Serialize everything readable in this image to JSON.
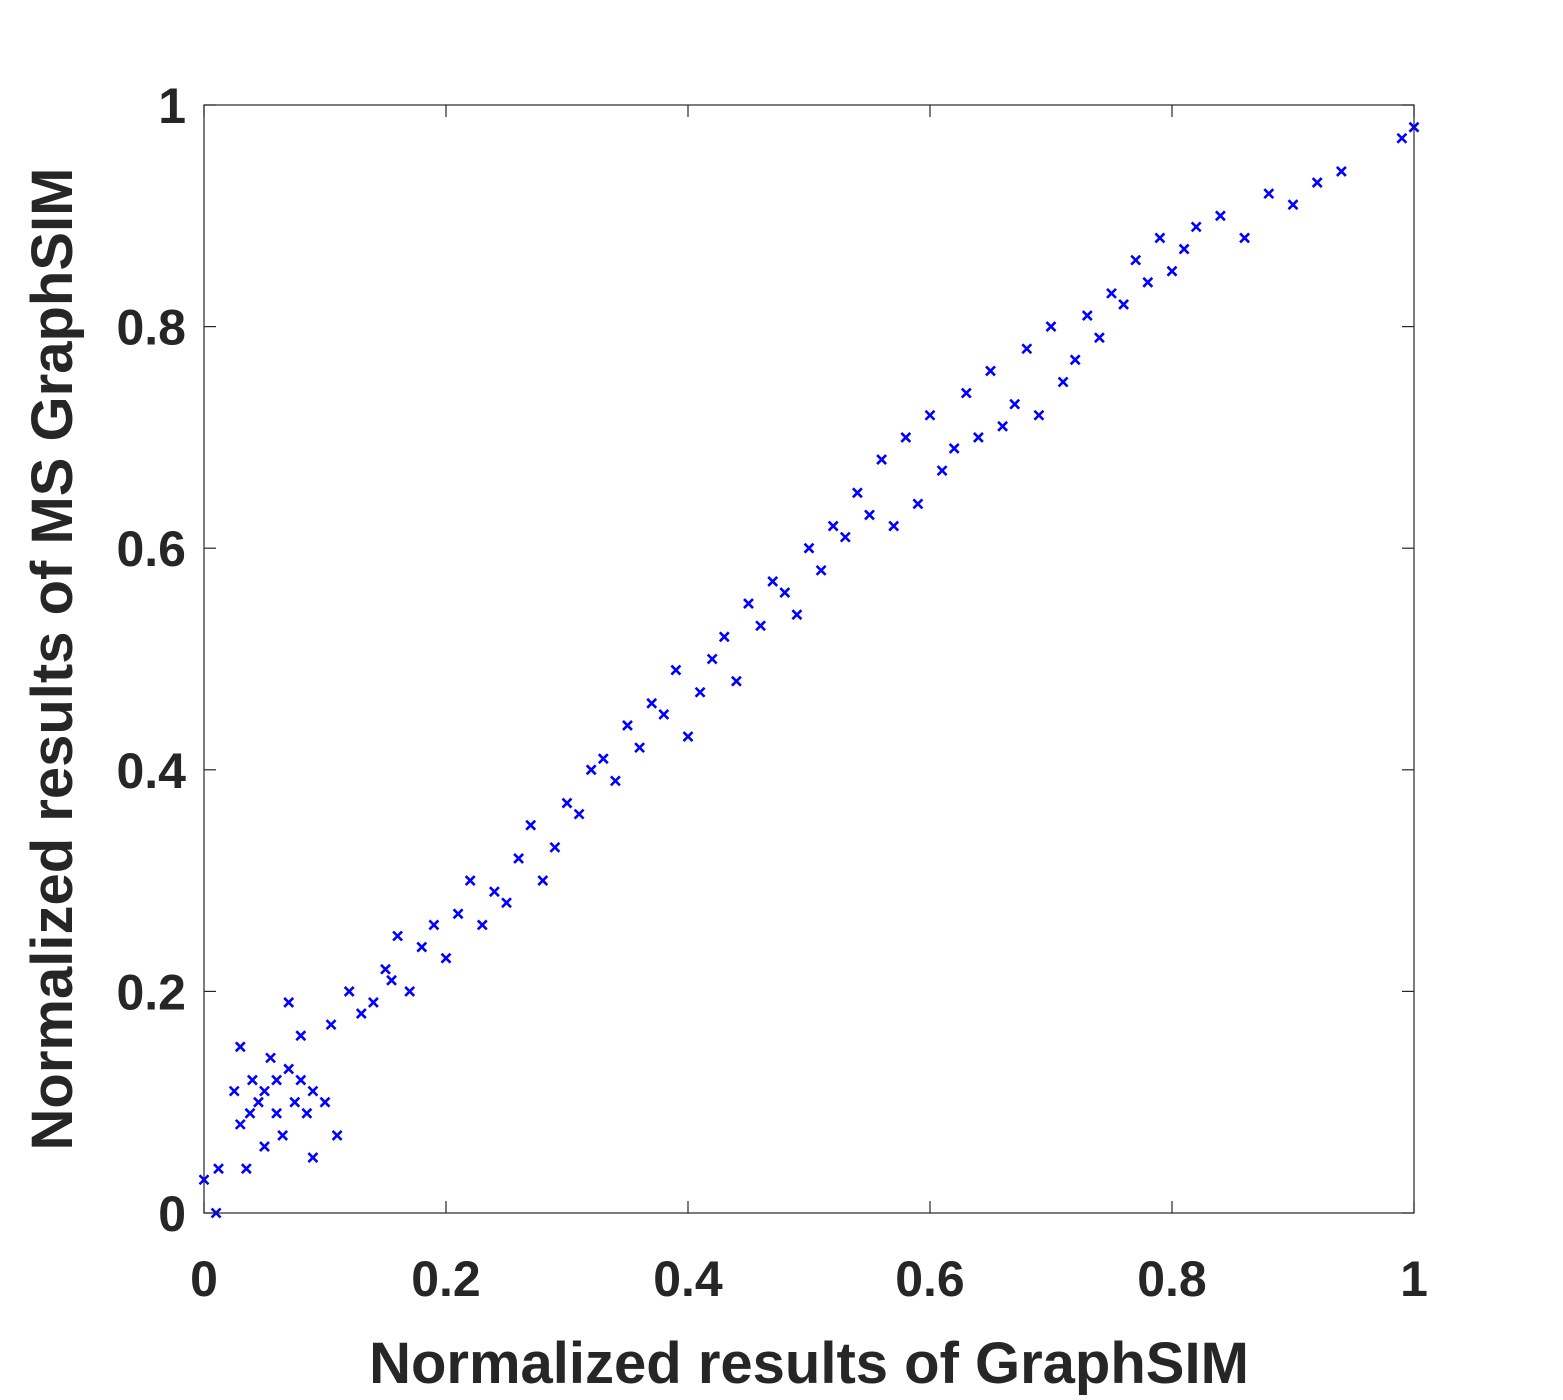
{
  "chart_data": {
    "type": "scatter",
    "title": "",
    "xlabel": "Normalized results of GraphSIM",
    "ylabel": "Normalized results of MS GraphSIM",
    "xlim": [
      0,
      1
    ],
    "ylim": [
      0,
      1
    ],
    "xticks": [
      "0",
      "0.2",
      "0.4",
      "0.6",
      "0.8",
      "1"
    ],
    "yticks": [
      "0",
      "0.2",
      "0.4",
      "0.6",
      "0.8",
      "1"
    ],
    "grid": false,
    "legend": "none",
    "marker": "x",
    "color": "#0000FF",
    "series": [
      {
        "x": [
          0.0,
          0.01,
          0.012,
          0.025,
          0.03,
          0.03,
          0.035,
          0.038,
          0.04,
          0.045,
          0.05,
          0.05,
          0.055,
          0.06,
          0.06,
          0.065,
          0.07,
          0.07,
          0.075,
          0.08,
          0.08,
          0.085,
          0.09,
          0.09,
          0.1,
          0.105,
          0.11,
          0.12,
          0.13,
          0.14,
          0.15,
          0.155,
          0.16,
          0.17,
          0.18,
          0.19,
          0.2,
          0.21,
          0.22,
          0.23,
          0.24,
          0.25,
          0.26,
          0.27,
          0.28,
          0.29,
          0.3,
          0.31,
          0.32,
          0.33,
          0.34,
          0.35,
          0.36,
          0.37,
          0.38,
          0.39,
          0.4,
          0.41,
          0.42,
          0.43,
          0.44,
          0.45,
          0.46,
          0.47,
          0.48,
          0.49,
          0.5,
          0.51,
          0.52,
          0.53,
          0.54,
          0.55,
          0.56,
          0.57,
          0.58,
          0.59,
          0.6,
          0.61,
          0.62,
          0.63,
          0.64,
          0.65,
          0.66,
          0.67,
          0.68,
          0.69,
          0.7,
          0.71,
          0.72,
          0.73,
          0.74,
          0.75,
          0.76,
          0.77,
          0.78,
          0.79,
          0.8,
          0.81,
          0.82,
          0.84,
          0.86,
          0.88,
          0.9,
          0.92,
          0.94,
          0.99,
          1.0
        ],
        "y": [
          0.03,
          0.0,
          0.04,
          0.11,
          0.15,
          0.08,
          0.04,
          0.09,
          0.12,
          0.1,
          0.06,
          0.11,
          0.14,
          0.09,
          0.12,
          0.07,
          0.13,
          0.19,
          0.1,
          0.12,
          0.16,
          0.09,
          0.11,
          0.05,
          0.1,
          0.17,
          0.07,
          0.2,
          0.18,
          0.19,
          0.22,
          0.21,
          0.25,
          0.2,
          0.24,
          0.26,
          0.23,
          0.27,
          0.3,
          0.26,
          0.29,
          0.28,
          0.32,
          0.35,
          0.3,
          0.33,
          0.37,
          0.36,
          0.4,
          0.41,
          0.39,
          0.44,
          0.42,
          0.46,
          0.45,
          0.49,
          0.43,
          0.47,
          0.5,
          0.52,
          0.48,
          0.55,
          0.53,
          0.57,
          0.56,
          0.54,
          0.6,
          0.58,
          0.62,
          0.61,
          0.65,
          0.63,
          0.68,
          0.62,
          0.7,
          0.64,
          0.72,
          0.67,
          0.69,
          0.74,
          0.7,
          0.76,
          0.71,
          0.73,
          0.78,
          0.72,
          0.8,
          0.75,
          0.77,
          0.81,
          0.79,
          0.83,
          0.82,
          0.86,
          0.84,
          0.88,
          0.85,
          0.87,
          0.89,
          0.9,
          0.88,
          0.92,
          0.91,
          0.93,
          0.94,
          0.97,
          0.98
        ]
      }
    ]
  }
}
